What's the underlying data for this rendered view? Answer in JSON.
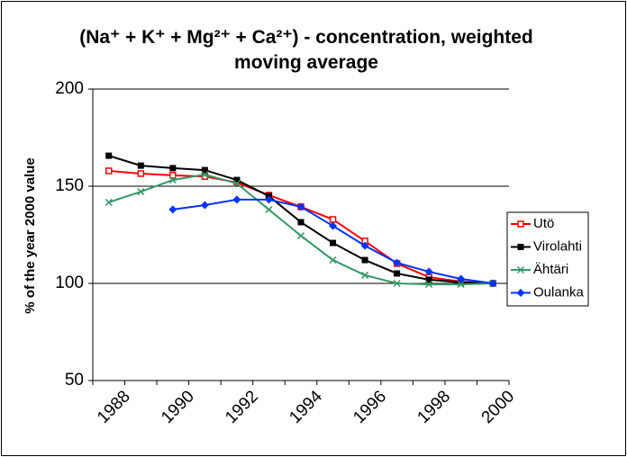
{
  "chart_data": {
    "type": "line",
    "title": "(Na⁺ + K⁺ + Mg²⁺ + Ca²⁺) - concentration, weighted moving average",
    "y_label": "% of the year 2000 value",
    "categories": [
      "1988",
      null,
      "1990",
      null,
      "1992",
      null,
      "1994",
      null,
      "1996",
      null,
      "1998",
      null,
      "2000"
    ],
    "ylim": [
      50,
      200
    ],
    "yticks": [
      50,
      100,
      150,
      200
    ],
    "grid": true,
    "legend": "right",
    "series": [
      {
        "name": "Utö",
        "color": "#ff0000",
        "marker": "open-square",
        "values": [
          157.9,
          156.5,
          155.6,
          155,
          151.9,
          145.4,
          139.4,
          132.9,
          121.8,
          110.2,
          103.2,
          100.9,
          100
        ]
      },
      {
        "name": "Virolahti",
        "color": "#000000",
        "marker": "square",
        "values": [
          165.7,
          160.6,
          159.3,
          158.3,
          153.2,
          144.9,
          131.5,
          120.8,
          112,
          105.1,
          101.9,
          100.5,
          100
        ]
      },
      {
        "name": "Ähtäri",
        "color": "#339966",
        "marker": "x",
        "values": [
          141.7,
          147.2,
          153.2,
          156,
          151.4,
          138,
          124.5,
          112,
          104.2,
          100,
          99.5,
          99.5,
          100
        ]
      },
      {
        "name": "Oulanka",
        "color": "#0033ff",
        "marker": "diamond",
        "values": [
          null,
          null,
          138,
          140.3,
          143.1,
          143.1,
          139.4,
          129.6,
          119.4,
          110.6,
          106,
          102.3,
          100
        ]
      }
    ]
  }
}
